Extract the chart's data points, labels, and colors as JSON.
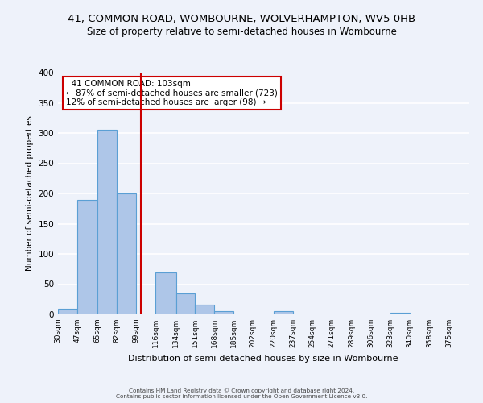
{
  "title_line1": "41, COMMON ROAD, WOMBOURNE, WOLVERHAMPTON, WV5 0HB",
  "title_line2": "Size of property relative to semi-detached houses in Wombourne",
  "bar_left_edges": [
    30,
    47,
    65,
    82,
    99,
    116,
    134,
    151,
    168,
    185,
    202,
    220,
    237,
    254,
    271,
    289,
    306,
    323,
    340,
    358
  ],
  "bar_widths": [
    17,
    18,
    17,
    17,
    17,
    18,
    17,
    17,
    17,
    17,
    18,
    17,
    17,
    17,
    18,
    17,
    17,
    17,
    18,
    17
  ],
  "bar_heights": [
    10,
    190,
    305,
    200,
    0,
    70,
    35,
    16,
    5,
    0,
    0,
    5,
    0,
    0,
    0,
    0,
    0,
    3,
    0,
    0
  ],
  "bar_color": "#aec6e8",
  "bar_edge_color": "#5a9fd4",
  "vline_x": 103,
  "vline_color": "#cc0000",
  "ylabel": "Number of semi-detached properties",
  "xlabel": "Distribution of semi-detached houses by size in Wombourne",
  "xlim": [
    30,
    392
  ],
  "ylim": [
    0,
    400
  ],
  "yticks": [
    0,
    50,
    100,
    150,
    200,
    250,
    300,
    350,
    400
  ],
  "xtick_labels": [
    "30sqm",
    "47sqm",
    "65sqm",
    "82sqm",
    "99sqm",
    "116sqm",
    "134sqm",
    "151sqm",
    "168sqm",
    "185sqm",
    "202sqm",
    "220sqm",
    "237sqm",
    "254sqm",
    "271sqm",
    "289sqm",
    "306sqm",
    "323sqm",
    "340sqm",
    "358sqm",
    "375sqm"
  ],
  "xtick_positions": [
    30,
    47,
    65,
    82,
    99,
    116,
    134,
    151,
    168,
    185,
    202,
    220,
    237,
    254,
    271,
    289,
    306,
    323,
    340,
    358,
    375
  ],
  "annotation_title": "41 COMMON ROAD: 103sqm",
  "annotation_line1": "← 87% of semi-detached houses are smaller (723)",
  "annotation_line2": "12% of semi-detached houses are larger (98) →",
  "footer_line1": "Contains HM Land Registry data © Crown copyright and database right 2024.",
  "footer_line2": "Contains public sector information licensed under the Open Government Licence v3.0.",
  "bg_color": "#eef2fa",
  "grid_color": "#ffffff",
  "title_fontsize": 9.5,
  "subtitle_fontsize": 8.5
}
